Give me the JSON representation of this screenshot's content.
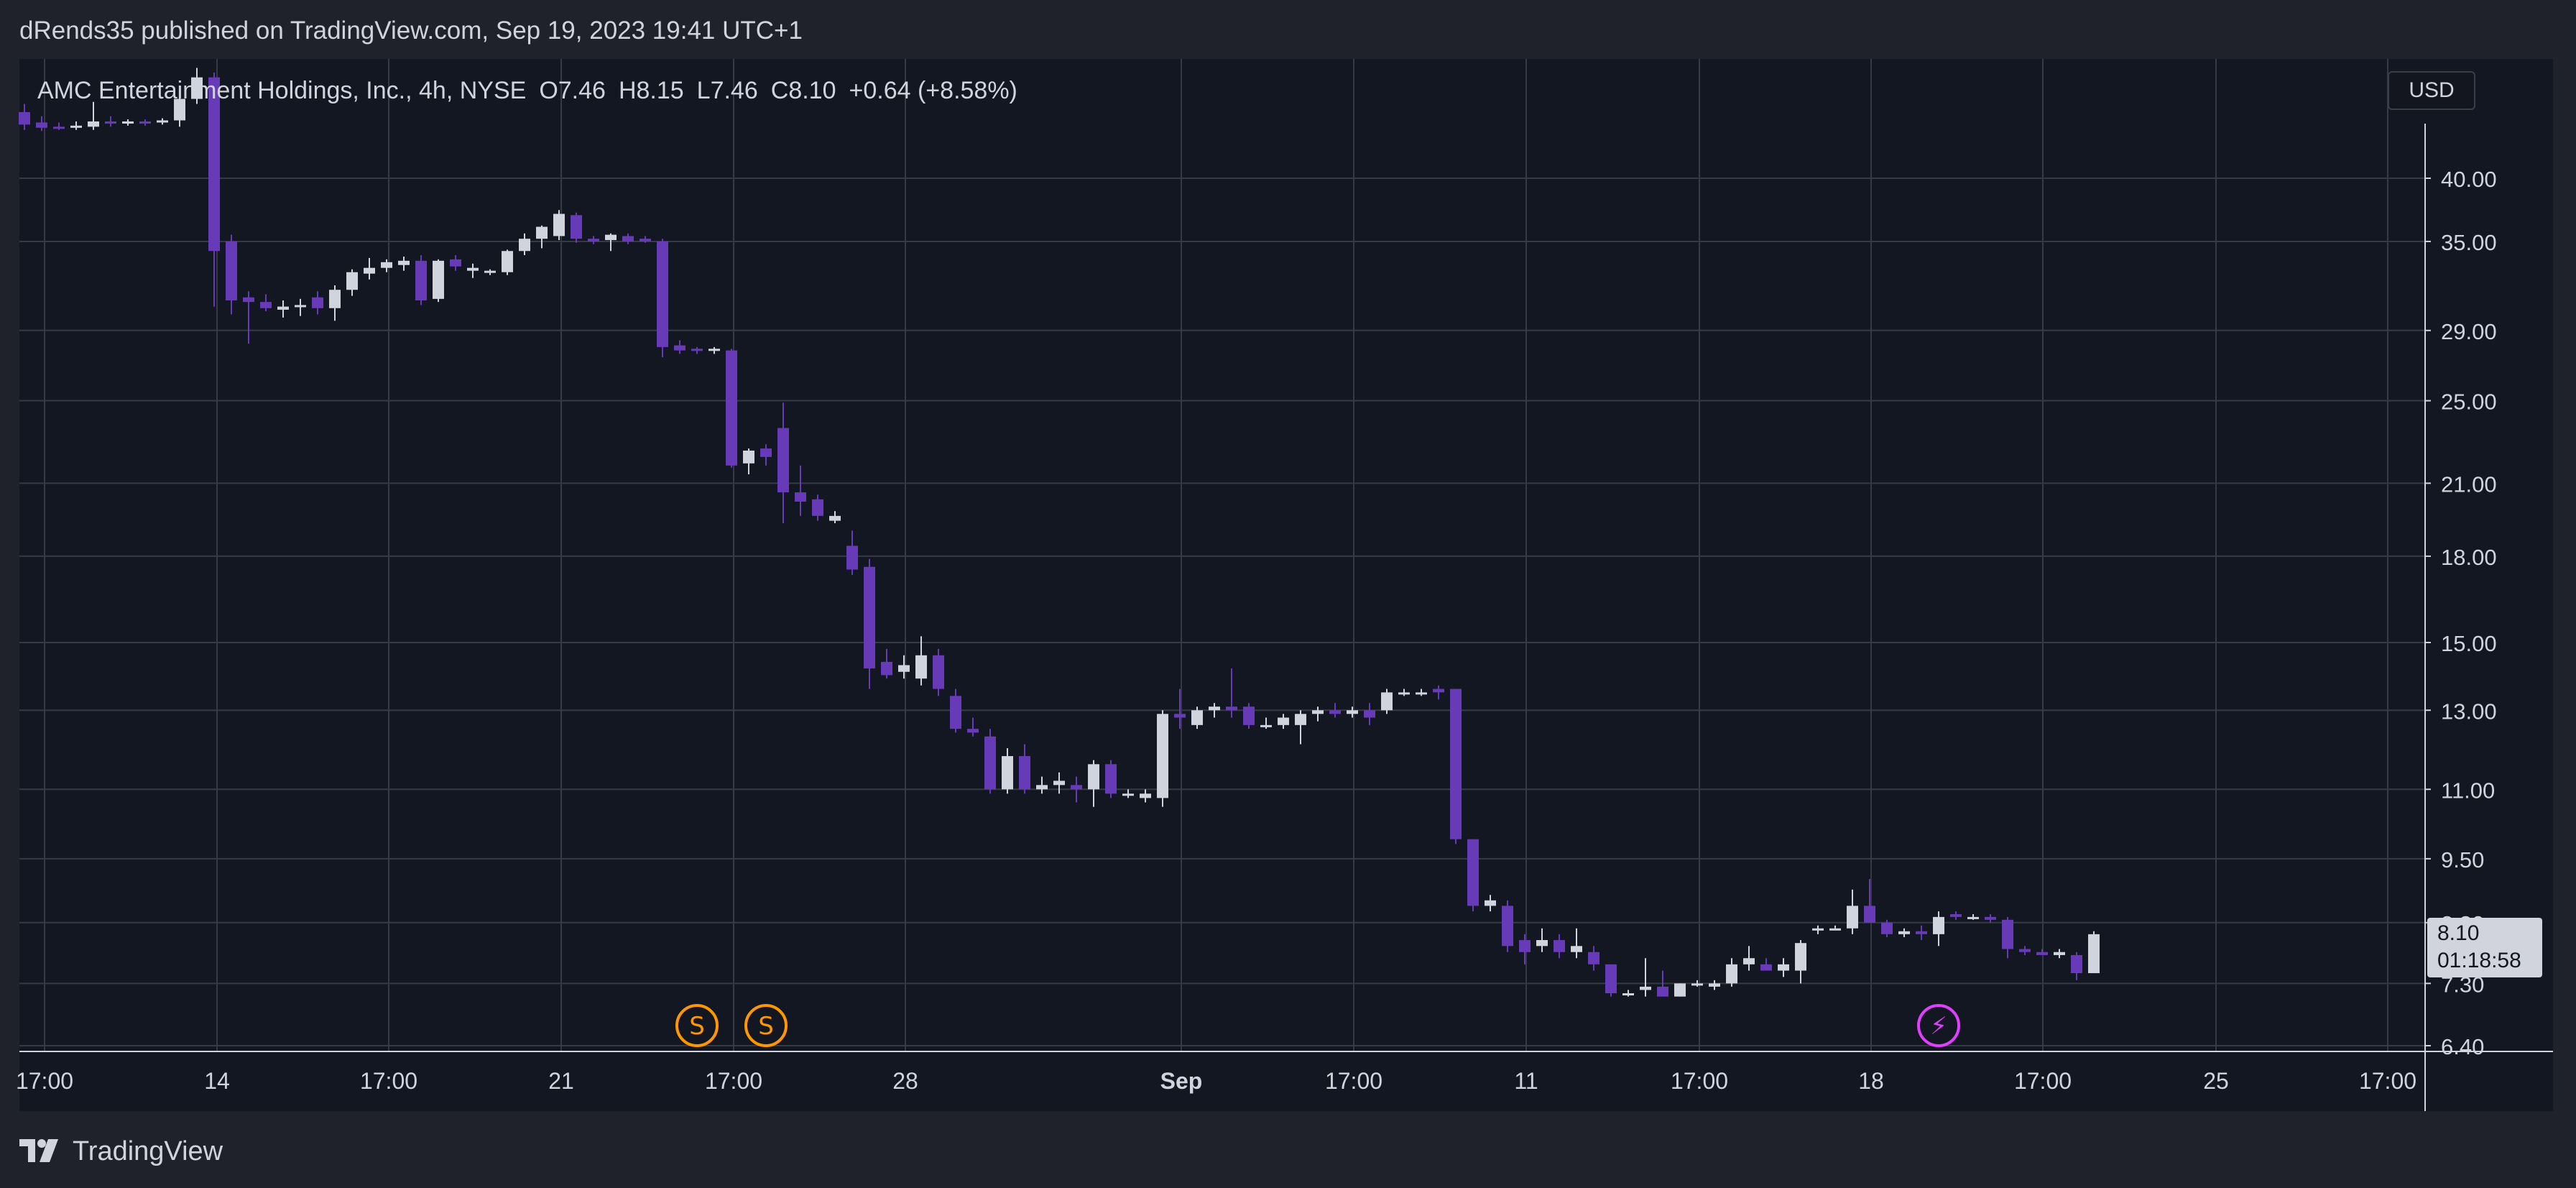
{
  "header": {
    "publish_line": "dRends35 published on TradingView.com, Sep 19, 2023 19:41 UTC+1"
  },
  "legend": {
    "symbol": "AMC Entertainment Holdings, Inc., 4h, NYSE",
    "open": "O7.46",
    "high": "H8.15",
    "low": "L7.46",
    "close": "C8.10",
    "change": "+0.64 (+8.58%)"
  },
  "currency_button": "USD",
  "last_price": {
    "price": "8.10",
    "countdown": "01:18:58"
  },
  "brand": {
    "name": "TradingView"
  },
  "colors": {
    "background": "#131722",
    "page": "#1f222b",
    "grid": "#363a45",
    "text": "#d1d4dc",
    "up_candle": "#d1d4dc",
    "down_candle": "#673ab7",
    "split_marker": "#ff9800",
    "event_marker": "#e040fb"
  },
  "chart_data": {
    "type": "candlestick",
    "title": "AMC Entertainment Holdings, Inc., 4h, NYSE",
    "y_scale": "log",
    "y_ticks": [
      "40.00",
      "35.00",
      "29.00",
      "25.00",
      "21.00",
      "18.00",
      "15.00",
      "13.00",
      "11.00",
      "9.50",
      "8.30",
      "7.30",
      "6.40"
    ],
    "y_tick_values": [
      40,
      35,
      29,
      25,
      21,
      18,
      15,
      13,
      11,
      9.5,
      8.3,
      7.3,
      6.4
    ],
    "ylim": [
      6.4,
      51
    ],
    "x_ticks": [
      {
        "label": "17:00",
        "bold": false
      },
      {
        "label": "14",
        "bold": false
      },
      {
        "label": "17:00",
        "bold": false
      },
      {
        "label": "21",
        "bold": false
      },
      {
        "label": "17:00",
        "bold": false
      },
      {
        "label": "28",
        "bold": false
      },
      {
        "label": "Sep",
        "bold": true
      },
      {
        "label": "17:00",
        "bold": false
      },
      {
        "label": "11",
        "bold": false
      },
      {
        "label": "17:00",
        "bold": false
      },
      {
        "label": "18",
        "bold": false
      },
      {
        "label": "17:00",
        "bold": false
      },
      {
        "label": "25",
        "bold": false
      },
      {
        "label": "17:00",
        "bold": false
      }
    ],
    "markers": [
      {
        "type": "split",
        "label": "S",
        "bar": 39
      },
      {
        "type": "split",
        "label": "S",
        "bar": 43
      },
      {
        "type": "event",
        "label": "⚡",
        "bar": 111
      }
    ],
    "candles": [
      {
        "o": 46.0,
        "h": 46.8,
        "l": 44.3,
        "c": 44.8
      },
      {
        "o": 45.0,
        "h": 45.6,
        "l": 44.2,
        "c": 44.5
      },
      {
        "o": 44.6,
        "h": 45.0,
        "l": 44.3,
        "c": 44.5
      },
      {
        "o": 44.5,
        "h": 45.1,
        "l": 44.3,
        "c": 44.7
      },
      {
        "o": 44.6,
        "h": 47.0,
        "l": 44.3,
        "c": 45.1
      },
      {
        "o": 45.1,
        "h": 45.6,
        "l": 44.6,
        "c": 45.0
      },
      {
        "o": 45.0,
        "h": 45.3,
        "l": 44.7,
        "c": 45.1
      },
      {
        "o": 45.1,
        "h": 45.3,
        "l": 44.7,
        "c": 45.0
      },
      {
        "o": 45.1,
        "h": 45.4,
        "l": 44.8,
        "c": 45.2
      },
      {
        "o": 45.2,
        "h": 47.5,
        "l": 44.6,
        "c": 47.3
      },
      {
        "o": 47.3,
        "h": 50.5,
        "l": 46.8,
        "c": 49.5
      },
      {
        "o": 49.5,
        "h": 50.0,
        "l": 30.5,
        "c": 34.3
      },
      {
        "o": 35.0,
        "h": 35.5,
        "l": 30.0,
        "c": 30.9
      },
      {
        "o": 31.1,
        "h": 31.5,
        "l": 28.2,
        "c": 30.8
      },
      {
        "o": 30.8,
        "h": 31.3,
        "l": 30.2,
        "c": 30.4
      },
      {
        "o": 30.3,
        "h": 30.9,
        "l": 29.8,
        "c": 30.5
      },
      {
        "o": 30.5,
        "h": 31.0,
        "l": 29.9,
        "c": 30.6
      },
      {
        "o": 31.1,
        "h": 31.5,
        "l": 30.0,
        "c": 30.4
      },
      {
        "o": 30.4,
        "h": 31.9,
        "l": 29.6,
        "c": 31.6
      },
      {
        "o": 31.6,
        "h": 33.0,
        "l": 31.2,
        "c": 32.8
      },
      {
        "o": 32.7,
        "h": 33.8,
        "l": 32.3,
        "c": 33.1
      },
      {
        "o": 33.1,
        "h": 33.7,
        "l": 32.8,
        "c": 33.5
      },
      {
        "o": 33.3,
        "h": 33.9,
        "l": 32.9,
        "c": 33.6
      },
      {
        "o": 33.6,
        "h": 34.0,
        "l": 30.6,
        "c": 30.9
      },
      {
        "o": 31.0,
        "h": 33.7,
        "l": 30.8,
        "c": 33.6
      },
      {
        "o": 33.7,
        "h": 34.0,
        "l": 32.9,
        "c": 33.2
      },
      {
        "o": 32.9,
        "h": 33.4,
        "l": 32.4,
        "c": 33.1
      },
      {
        "o": 32.8,
        "h": 33.0,
        "l": 32.6,
        "c": 32.9
      },
      {
        "o": 32.8,
        "h": 34.4,
        "l": 32.6,
        "c": 34.3
      },
      {
        "o": 34.3,
        "h": 35.6,
        "l": 34.0,
        "c": 35.2
      },
      {
        "o": 35.2,
        "h": 36.2,
        "l": 34.5,
        "c": 36.1
      },
      {
        "o": 35.4,
        "h": 37.4,
        "l": 35.1,
        "c": 37.1
      },
      {
        "o": 37.0,
        "h": 37.2,
        "l": 34.9,
        "c": 35.2
      },
      {
        "o": 35.2,
        "h": 35.4,
        "l": 34.8,
        "c": 35.0
      },
      {
        "o": 35.1,
        "h": 35.6,
        "l": 34.3,
        "c": 35.5
      },
      {
        "o": 35.4,
        "h": 35.6,
        "l": 34.8,
        "c": 35.0
      },
      {
        "o": 35.2,
        "h": 35.4,
        "l": 34.9,
        "c": 35.0
      },
      {
        "o": 35.0,
        "h": 35.2,
        "l": 27.4,
        "c": 28.0
      },
      {
        "o": 28.1,
        "h": 28.4,
        "l": 27.6,
        "c": 27.8
      },
      {
        "o": 27.9,
        "h": 28.0,
        "l": 27.6,
        "c": 27.8
      },
      {
        "o": 27.8,
        "h": 28.0,
        "l": 27.6,
        "c": 27.9
      },
      {
        "o": 27.8,
        "h": 27.9,
        "l": 21.7,
        "c": 21.8
      },
      {
        "o": 21.9,
        "h": 22.6,
        "l": 21.4,
        "c": 22.5
      },
      {
        "o": 22.6,
        "h": 22.8,
        "l": 21.8,
        "c": 22.2
      },
      {
        "o": 23.6,
        "h": 24.9,
        "l": 19.3,
        "c": 20.6
      },
      {
        "o": 20.6,
        "h": 21.8,
        "l": 19.6,
        "c": 20.2
      },
      {
        "o": 20.3,
        "h": 20.5,
        "l": 19.4,
        "c": 19.6
      },
      {
        "o": 19.4,
        "h": 19.8,
        "l": 19.3,
        "c": 19.6
      },
      {
        "o": 18.4,
        "h": 19.0,
        "l": 17.3,
        "c": 17.5
      },
      {
        "o": 17.6,
        "h": 17.9,
        "l": 13.6,
        "c": 14.2
      },
      {
        "o": 14.4,
        "h": 14.8,
        "l": 13.9,
        "c": 14.0
      },
      {
        "o": 14.1,
        "h": 14.6,
        "l": 13.9,
        "c": 14.3
      },
      {
        "o": 13.9,
        "h": 15.2,
        "l": 13.7,
        "c": 14.6
      },
      {
        "o": 14.6,
        "h": 14.8,
        "l": 13.4,
        "c": 13.6
      },
      {
        "o": 13.4,
        "h": 13.6,
        "l": 12.4,
        "c": 12.5
      },
      {
        "o": 12.5,
        "h": 12.8,
        "l": 12.3,
        "c": 12.4
      },
      {
        "o": 12.3,
        "h": 12.5,
        "l": 10.9,
        "c": 11.0
      },
      {
        "o": 11.0,
        "h": 12.0,
        "l": 10.9,
        "c": 11.8
      },
      {
        "o": 11.8,
        "h": 12.1,
        "l": 10.9,
        "c": 11.0
      },
      {
        "o": 11.0,
        "h": 11.3,
        "l": 10.9,
        "c": 11.1
      },
      {
        "o": 11.1,
        "h": 11.4,
        "l": 10.9,
        "c": 11.2
      },
      {
        "o": 11.1,
        "h": 11.3,
        "l": 10.7,
        "c": 11.0
      },
      {
        "o": 11.0,
        "h": 11.7,
        "l": 10.6,
        "c": 11.6
      },
      {
        "o": 11.6,
        "h": 11.7,
        "l": 10.8,
        "c": 10.9
      },
      {
        "o": 10.9,
        "h": 11.0,
        "l": 10.8,
        "c": 10.9
      },
      {
        "o": 10.8,
        "h": 11.0,
        "l": 10.7,
        "c": 10.9
      },
      {
        "o": 10.8,
        "h": 13.0,
        "l": 10.6,
        "c": 12.9
      },
      {
        "o": 12.9,
        "h": 13.6,
        "l": 12.5,
        "c": 12.8
      },
      {
        "o": 12.6,
        "h": 13.1,
        "l": 12.5,
        "c": 13.0
      },
      {
        "o": 13.0,
        "h": 13.2,
        "l": 12.8,
        "c": 13.1
      },
      {
        "o": 13.1,
        "h": 14.2,
        "l": 12.8,
        "c": 13.0
      },
      {
        "o": 13.1,
        "h": 13.2,
        "l": 12.5,
        "c": 12.6
      },
      {
        "o": 12.6,
        "h": 12.8,
        "l": 12.5,
        "c": 12.6
      },
      {
        "o": 12.6,
        "h": 12.9,
        "l": 12.5,
        "c": 12.8
      },
      {
        "o": 12.6,
        "h": 13.0,
        "l": 12.1,
        "c": 12.9
      },
      {
        "o": 12.9,
        "h": 13.1,
        "l": 12.7,
        "c": 13.0
      },
      {
        "o": 13.0,
        "h": 13.2,
        "l": 12.8,
        "c": 12.9
      },
      {
        "o": 12.9,
        "h": 13.1,
        "l": 12.8,
        "c": 13.0
      },
      {
        "o": 13.0,
        "h": 13.2,
        "l": 12.6,
        "c": 12.8
      },
      {
        "o": 13.0,
        "h": 13.6,
        "l": 12.9,
        "c": 13.5
      },
      {
        "o": 13.5,
        "h": 13.6,
        "l": 13.4,
        "c": 13.5
      },
      {
        "o": 13.5,
        "h": 13.6,
        "l": 13.4,
        "c": 13.5
      },
      {
        "o": 13.6,
        "h": 13.7,
        "l": 13.3,
        "c": 13.5
      },
      {
        "o": 13.6,
        "h": 13.6,
        "l": 9.8,
        "c": 9.9
      },
      {
        "o": 9.9,
        "h": 9.9,
        "l": 8.5,
        "c": 8.6
      },
      {
        "o": 8.6,
        "h": 8.8,
        "l": 8.5,
        "c": 8.7
      },
      {
        "o": 8.6,
        "h": 8.7,
        "l": 7.8,
        "c": 7.9
      },
      {
        "o": 8.0,
        "h": 8.1,
        "l": 7.6,
        "c": 7.8
      },
      {
        "o": 7.9,
        "h": 8.2,
        "l": 7.8,
        "c": 8.0
      },
      {
        "o": 8.0,
        "h": 8.1,
        "l": 7.7,
        "c": 7.8
      },
      {
        "o": 7.8,
        "h": 8.2,
        "l": 7.7,
        "c": 7.9
      },
      {
        "o": 7.8,
        "h": 7.9,
        "l": 7.5,
        "c": 7.6
      },
      {
        "o": 7.6,
        "h": 7.6,
        "l": 7.1,
        "c": 7.15
      },
      {
        "o": 7.15,
        "h": 7.2,
        "l": 7.1,
        "c": 7.15
      },
      {
        "o": 7.2,
        "h": 7.7,
        "l": 7.1,
        "c": 7.25
      },
      {
        "o": 7.25,
        "h": 7.5,
        "l": 7.1,
        "c": 7.1
      },
      {
        "o": 7.1,
        "h": 7.3,
        "l": 7.1,
        "c": 7.3
      },
      {
        "o": 7.3,
        "h": 7.35,
        "l": 7.25,
        "c": 7.3
      },
      {
        "o": 7.25,
        "h": 7.35,
        "l": 7.2,
        "c": 7.3
      },
      {
        "o": 7.3,
        "h": 7.7,
        "l": 7.25,
        "c": 7.6
      },
      {
        "o": 7.6,
        "h": 7.9,
        "l": 7.5,
        "c": 7.7
      },
      {
        "o": 7.6,
        "h": 7.7,
        "l": 7.5,
        "c": 7.5
      },
      {
        "o": 7.5,
        "h": 7.7,
        "l": 7.4,
        "c": 7.6
      },
      {
        "o": 7.5,
        "h": 8.0,
        "l": 7.3,
        "c": 7.95
      },
      {
        "o": 8.2,
        "h": 8.25,
        "l": 8.1,
        "c": 8.2
      },
      {
        "o": 8.2,
        "h": 8.25,
        "l": 8.2,
        "c": 8.2
      },
      {
        "o": 8.2,
        "h": 8.9,
        "l": 8.1,
        "c": 8.6
      },
      {
        "o": 8.6,
        "h": 9.1,
        "l": 8.3,
        "c": 8.3
      },
      {
        "o": 8.3,
        "h": 8.35,
        "l": 8.05,
        "c": 8.1
      },
      {
        "o": 8.1,
        "h": 8.2,
        "l": 8.05,
        "c": 8.15
      },
      {
        "o": 8.15,
        "h": 8.25,
        "l": 8.0,
        "c": 8.1
      },
      {
        "o": 8.1,
        "h": 8.5,
        "l": 7.9,
        "c": 8.4
      },
      {
        "o": 8.45,
        "h": 8.5,
        "l": 8.35,
        "c": 8.4
      },
      {
        "o": 8.4,
        "h": 8.45,
        "l": 8.35,
        "c": 8.4
      },
      {
        "o": 8.4,
        "h": 8.45,
        "l": 8.3,
        "c": 8.35
      },
      {
        "o": 8.35,
        "h": 8.4,
        "l": 7.7,
        "c": 7.85
      },
      {
        "o": 7.85,
        "h": 7.9,
        "l": 7.75,
        "c": 7.8
      },
      {
        "o": 7.8,
        "h": 7.85,
        "l": 7.75,
        "c": 7.75
      },
      {
        "o": 7.75,
        "h": 7.85,
        "l": 7.7,
        "c": 7.8
      },
      {
        "o": 7.75,
        "h": 7.8,
        "l": 7.35,
        "c": 7.46
      },
      {
        "o": 7.46,
        "h": 8.15,
        "l": 7.46,
        "c": 8.1
      }
    ]
  }
}
